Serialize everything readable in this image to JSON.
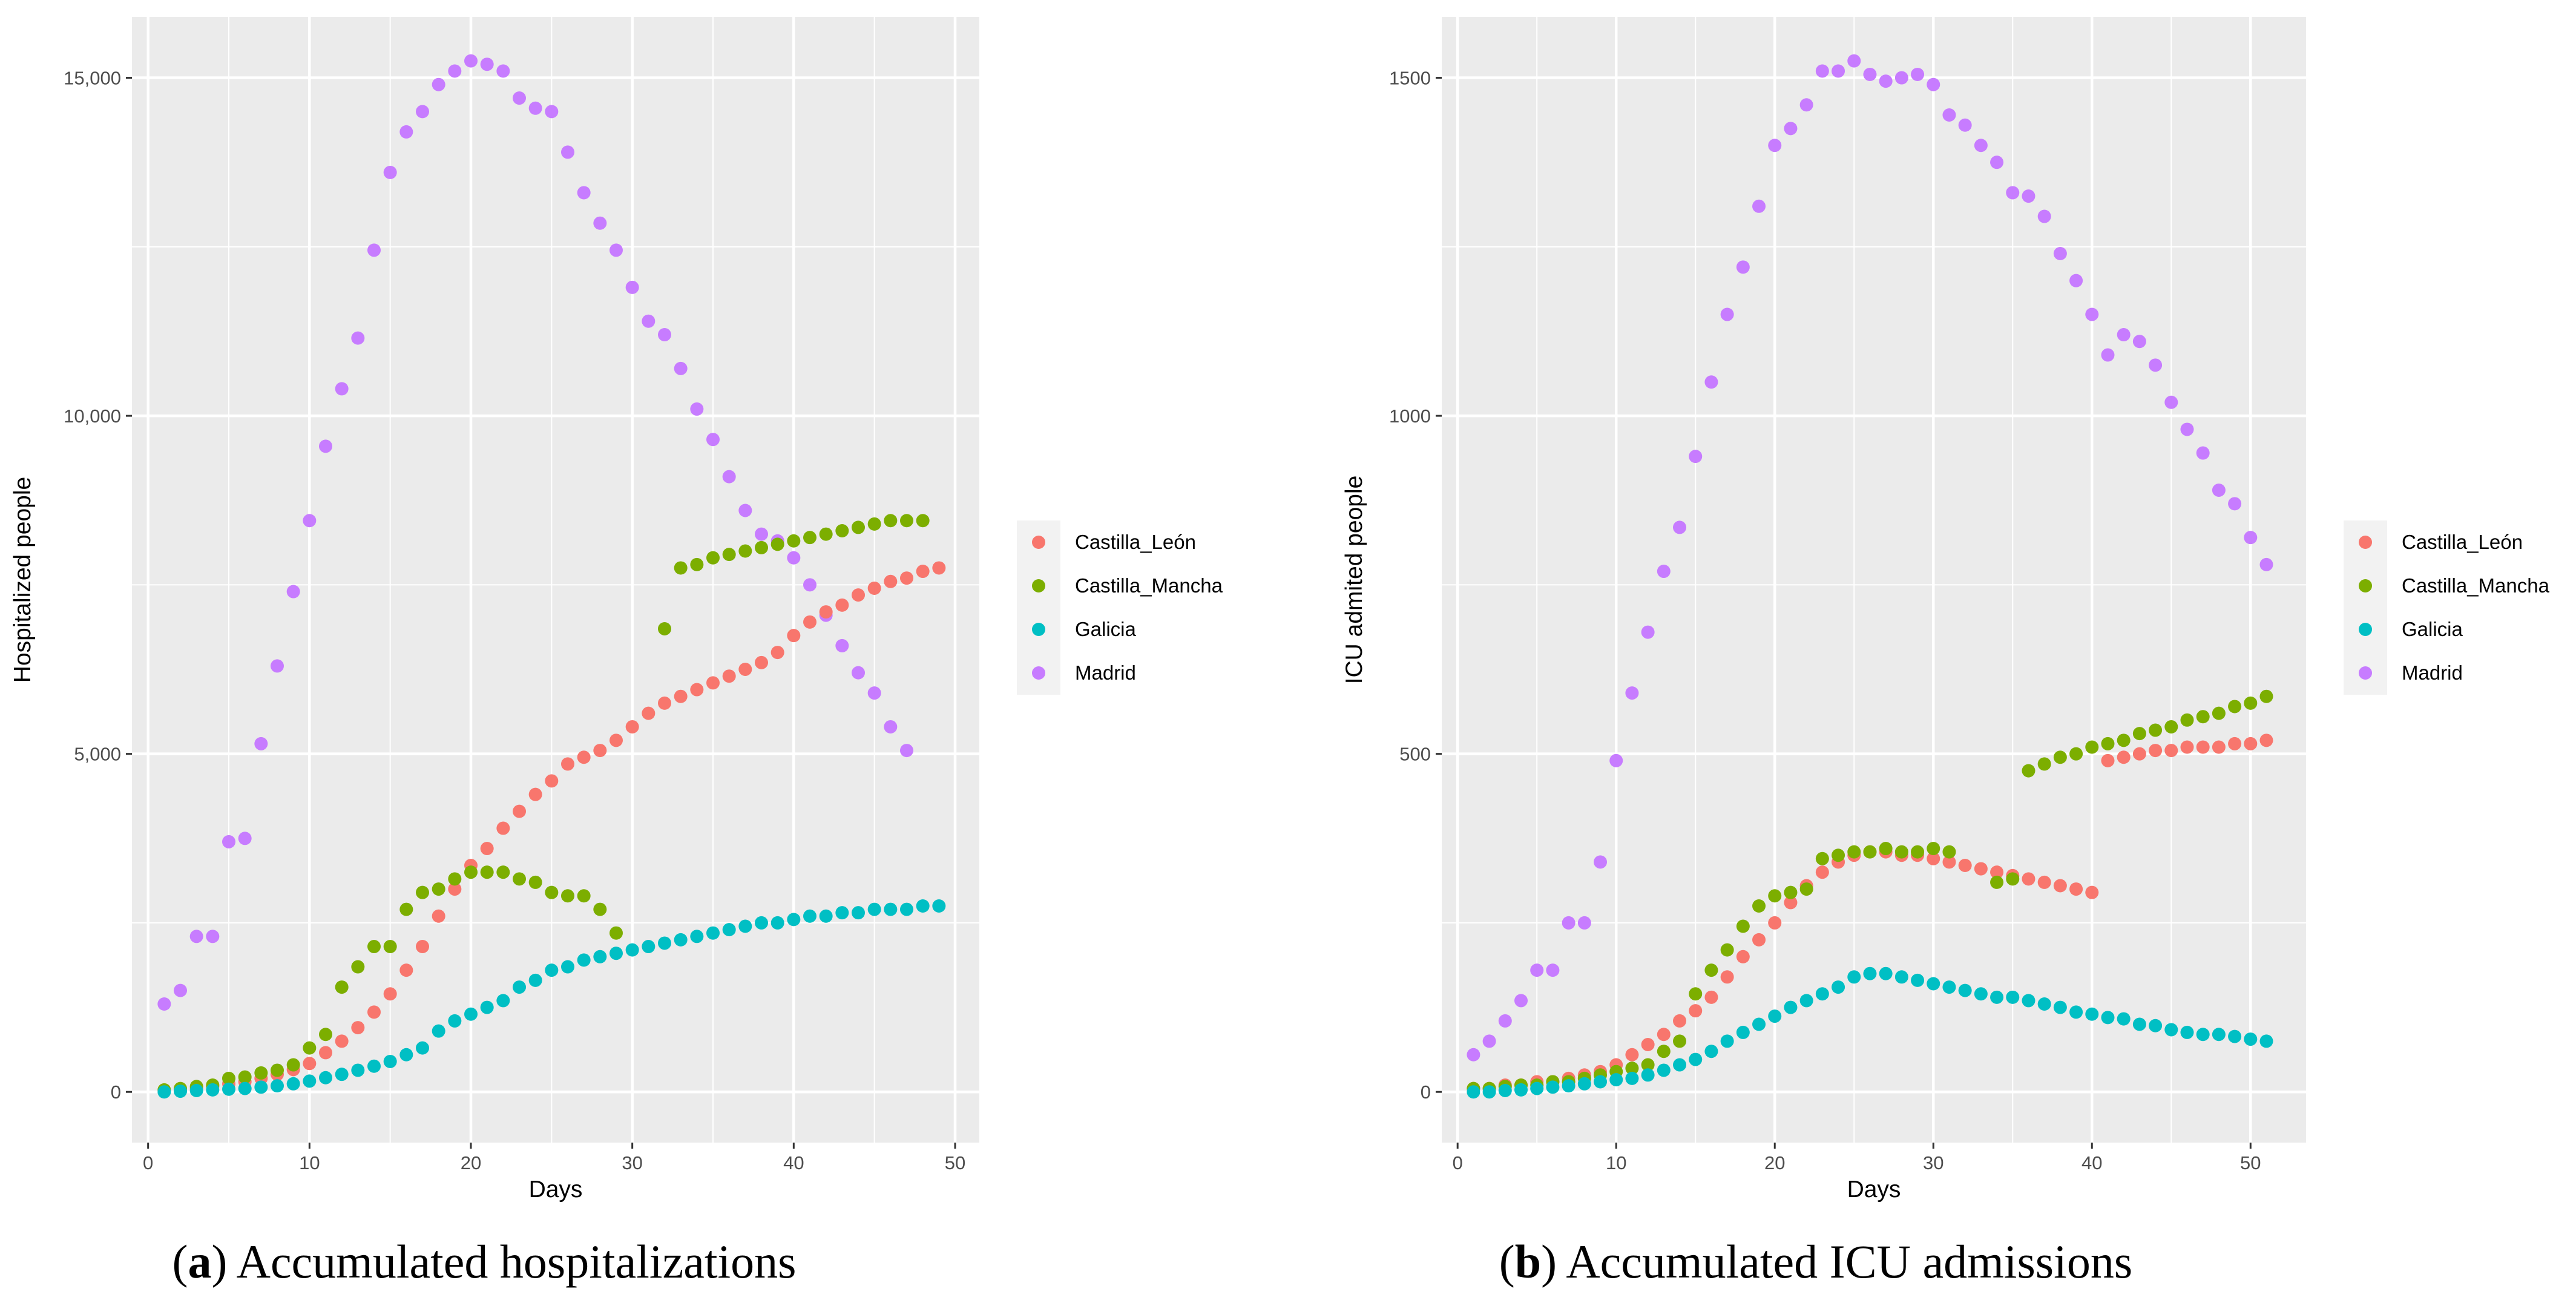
{
  "captions": [
    {
      "letter": "a",
      "text": "Accumulated hospitalizations"
    },
    {
      "letter": "b",
      "text": "Accumulated ICU admissions"
    }
  ],
  "colors": {
    "panel_bg": "#EBEBEB",
    "grid": "#FFFFFF",
    "Castilla_León": "#F8766D",
    "Castilla_Mancha": "#7CAE00",
    "Galicia": "#00BFC4",
    "Madrid": "#C77CFF"
  },
  "chart_data": [
    {
      "type": "scatter",
      "xlabel": "Days",
      "ylabel": "Hospitalized people",
      "xlim": [
        -1,
        51.5
      ],
      "ylim": [
        -750,
        15900
      ],
      "x_ticks": [
        0,
        10,
        20,
        30,
        40,
        50
      ],
      "x_tick_labels": [
        "0",
        "10",
        "20",
        "30",
        "40",
        "50"
      ],
      "y_ticks": [
        0,
        5000,
        10000,
        15000
      ],
      "y_tick_labels": [
        "0",
        "5,000",
        "10,000",
        "15,000"
      ],
      "legend": [
        "Castilla_León",
        "Castilla_Mancha",
        "Galicia",
        "Madrid"
      ],
      "series": [
        {
          "name": "Madrid",
          "x": [
            1,
            2,
            3,
            4,
            5,
            6,
            7,
            8,
            9,
            10,
            11,
            12,
            13,
            14,
            15,
            16,
            17,
            18,
            19,
            20,
            21,
            22,
            23,
            24,
            25,
            26,
            27,
            28,
            29,
            30,
            31,
            32,
            33,
            34,
            35,
            36,
            37,
            38,
            39,
            40,
            41,
            42,
            43,
            44,
            45,
            46,
            47
          ],
          "y": [
            1300,
            1500,
            2300,
            2300,
            3700,
            3750,
            5150,
            6300,
            7400,
            8450,
            9550,
            10400,
            11150,
            12450,
            13600,
            14200,
            14500,
            14900,
            15100,
            15250,
            15200,
            15100,
            14700,
            14550,
            14500,
            13900,
            13300,
            12850,
            12450,
            11900,
            11400,
            11200,
            10700,
            10100,
            9650,
            9100,
            8600,
            8250,
            8150,
            7900,
            7500,
            7050,
            6600,
            6200,
            5900,
            5400,
            5050
          ]
        },
        {
          "name": "Castilla_León",
          "x": [
            1,
            2,
            3,
            4,
            5,
            6,
            7,
            8,
            9,
            10,
            11,
            12,
            13,
            14,
            15,
            16,
            17,
            18,
            19,
            20,
            21,
            22,
            23,
            24,
            25,
            26,
            27,
            28,
            29,
            30,
            31,
            32,
            33,
            34,
            35,
            36,
            37,
            38,
            39,
            40,
            41,
            42,
            43,
            44,
            45,
            46,
            47,
            48,
            49
          ],
          "y": [
            20,
            30,
            50,
            80,
            120,
            150,
            200,
            260,
            330,
            420,
            580,
            750,
            950,
            1180,
            1450,
            1800,
            2150,
            2600,
            3000,
            3350,
            3600,
            3900,
            4150,
            4400,
            4600,
            4850,
            4950,
            5050,
            5200,
            5400,
            5600,
            5750,
            5850,
            5950,
            6050,
            6150,
            6250,
            6350,
            6500,
            6750,
            6950,
            7100,
            7200,
            7350,
            7450,
            7550,
            7600,
            7700,
            7750
          ]
        },
        {
          "name": "Castilla_Mancha",
          "x": [
            1,
            2,
            3,
            4,
            5,
            6,
            7,
            8,
            9,
            10,
            11,
            12,
            13,
            14,
            15,
            16,
            17,
            18,
            19,
            20,
            21,
            22,
            23,
            24,
            25,
            26,
            27,
            28,
            29,
            32,
            33,
            34,
            35,
            36,
            37,
            38,
            39,
            40,
            41,
            42,
            43,
            44,
            45,
            46,
            47,
            48
          ],
          "y": [
            30,
            50,
            80,
            100,
            200,
            220,
            280,
            320,
            400,
            650,
            850,
            1550,
            1850,
            2150,
            2150,
            2700,
            2950,
            3000,
            3150,
            3250,
            3250,
            3250,
            3150,
            3100,
            2950,
            2900,
            2900,
            2700,
            2350,
            6850,
            7750,
            7800,
            7900,
            7950,
            8000,
            8050,
            8100,
            8150,
            8200,
            8250,
            8300,
            8350,
            8400,
            8450,
            8450,
            8450
          ]
        },
        {
          "name": "Galicia",
          "x": [
            1,
            2,
            3,
            4,
            5,
            6,
            7,
            8,
            9,
            10,
            11,
            12,
            13,
            14,
            15,
            16,
            17,
            18,
            19,
            20,
            21,
            22,
            23,
            24,
            25,
            26,
            27,
            28,
            29,
            30,
            31,
            32,
            33,
            34,
            35,
            36,
            37,
            38,
            39,
            40,
            41,
            42,
            43,
            44,
            45,
            46,
            47,
            48,
            49
          ],
          "y": [
            0,
            10,
            20,
            30,
            40,
            50,
            70,
            90,
            120,
            160,
            210,
            260,
            320,
            380,
            450,
            550,
            650,
            900,
            1050,
            1150,
            1250,
            1350,
            1550,
            1650,
            1800,
            1850,
            1950,
            2000,
            2050,
            2100,
            2150,
            2200,
            2250,
            2300,
            2350,
            2400,
            2450,
            2500,
            2500,
            2550,
            2600,
            2600,
            2650,
            2650,
            2700,
            2700,
            2700,
            2750,
            2750
          ]
        }
      ]
    },
    {
      "type": "scatter",
      "xlabel": "Days",
      "ylabel": "ICU admited people",
      "xlim": [
        -1,
        53.5
      ],
      "ylim": [
        -75,
        1590
      ],
      "x_ticks": [
        0,
        10,
        20,
        30,
        40,
        50
      ],
      "x_tick_labels": [
        "0",
        "10",
        "20",
        "30",
        "40",
        "50"
      ],
      "y_ticks": [
        0,
        500,
        1000,
        1500
      ],
      "y_tick_labels": [
        "0",
        "500",
        "1000",
        "1500"
      ],
      "legend": [
        "Castilla_León",
        "Castilla_Mancha",
        "Galicia",
        "Madrid"
      ],
      "series": [
        {
          "name": "Madrid",
          "x": [
            1,
            2,
            3,
            4,
            5,
            6,
            7,
            8,
            9,
            10,
            11,
            12,
            13,
            14,
            15,
            16,
            17,
            18,
            19,
            20,
            21,
            22,
            23,
            24,
            25,
            26,
            27,
            28,
            29,
            30,
            31,
            32,
            33,
            34,
            35,
            36,
            37,
            38,
            39,
            40,
            41,
            42,
            43,
            44,
            45,
            46,
            47,
            48,
            49,
            50,
            51
          ],
          "y": [
            55,
            75,
            105,
            135,
            180,
            180,
            250,
            250,
            340,
            490,
            590,
            680,
            770,
            835,
            940,
            1050,
            1150,
            1220,
            1310,
            1400,
            1425,
            1460,
            1510,
            1510,
            1525,
            1505,
            1495,
            1500,
            1505,
            1490,
            1445,
            1430,
            1400,
            1375,
            1330,
            1325,
            1295,
            1240,
            1200,
            1150,
            1090,
            1120,
            1110,
            1075,
            1020,
            980,
            945,
            890,
            870,
            820,
            780
          ]
        },
        {
          "name": "Castilla_León",
          "x": [
            1,
            2,
            3,
            4,
            5,
            6,
            7,
            8,
            9,
            10,
            11,
            12,
            13,
            14,
            15,
            16,
            17,
            18,
            19,
            20,
            21,
            22,
            23,
            24,
            25,
            26,
            27,
            28,
            29,
            30,
            31,
            32,
            33,
            34,
            35,
            36,
            37,
            38,
            39,
            40,
            41,
            42,
            43,
            44,
            45,
            46,
            47,
            48,
            49,
            50,
            51
          ],
          "y": [
            5,
            5,
            10,
            10,
            15,
            15,
            20,
            25,
            30,
            40,
            55,
            70,
            85,
            105,
            120,
            140,
            170,
            200,
            225,
            250,
            280,
            305,
            325,
            340,
            350,
            355,
            355,
            350,
            350,
            345,
            340,
            335,
            330,
            325,
            320,
            315,
            310,
            305,
            300,
            295,
            490,
            495,
            500,
            505,
            505,
            510,
            510,
            510,
            515,
            515,
            520
          ]
        },
        {
          "name": "Castilla_Mancha",
          "x": [
            1,
            2,
            3,
            4,
            5,
            6,
            7,
            8,
            9,
            10,
            11,
            12,
            13,
            14,
            15,
            16,
            17,
            18,
            19,
            20,
            21,
            22,
            23,
            24,
            25,
            26,
            27,
            28,
            29,
            30,
            31,
            34,
            35,
            36,
            37,
            38,
            39,
            40,
            41,
            42,
            43,
            44,
            45,
            46,
            47,
            48,
            49,
            50,
            51
          ],
          "y": [
            5,
            5,
            8,
            10,
            10,
            15,
            15,
            20,
            25,
            30,
            35,
            40,
            60,
            75,
            145,
            180,
            210,
            245,
            275,
            290,
            295,
            300,
            345,
            350,
            355,
            355,
            360,
            355,
            355,
            360,
            355,
            310,
            315,
            475,
            485,
            495,
            500,
            510,
            515,
            520,
            530,
            535,
            540,
            550,
            555,
            560,
            570,
            575,
            585
          ]
        },
        {
          "name": "Galicia",
          "x": [
            1,
            2,
            3,
            4,
            5,
            6,
            7,
            8,
            9,
            10,
            11,
            12,
            13,
            14,
            15,
            16,
            17,
            18,
            19,
            20,
            21,
            22,
            23,
            24,
            25,
            26,
            27,
            28,
            29,
            30,
            31,
            32,
            33,
            34,
            35,
            36,
            37,
            38,
            39,
            40,
            41,
            42,
            43,
            44,
            45,
            46,
            47,
            48,
            49,
            50,
            51
          ],
          "y": [
            0,
            0,
            2,
            3,
            5,
            7,
            9,
            12,
            15,
            18,
            20,
            25,
            32,
            40,
            48,
            60,
            75,
            88,
            100,
            112,
            125,
            135,
            145,
            155,
            170,
            175,
            175,
            170,
            165,
            160,
            155,
            150,
            145,
            140,
            140,
            135,
            130,
            125,
            118,
            115,
            110,
            108,
            100,
            98,
            92,
            88,
            85,
            85,
            82,
            78,
            75
          ]
        }
      ]
    }
  ]
}
